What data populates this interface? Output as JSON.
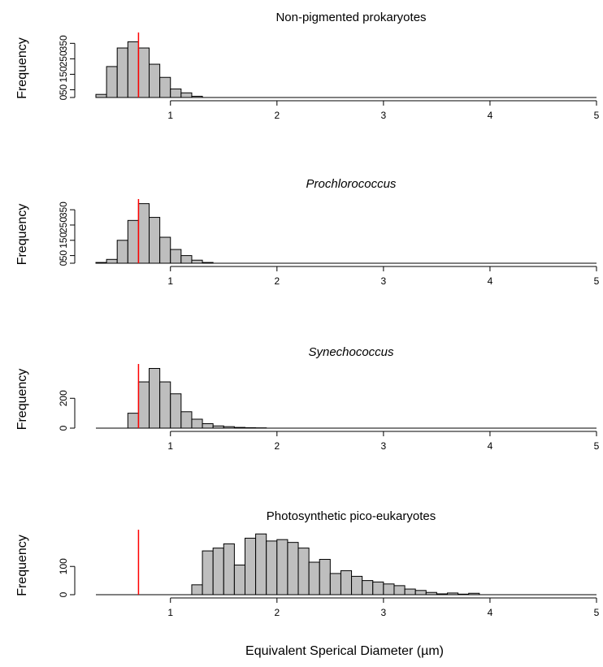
{
  "figure": {
    "xlabel": "Equivalent Sperical Diameter (µm)",
    "bar_color": "#bebebe",
    "bar_edge_color": "#000000",
    "reference_line_color": "#ff0000"
  },
  "chart_data": [
    {
      "type": "bar",
      "title": "Non-pigmented prokaryotes",
      "title_italic": false,
      "ylabel": "Frequency",
      "xlim": [
        0.3,
        5.0
      ],
      "ylim": [
        0,
        420
      ],
      "x_ticks": [
        1,
        2,
        3,
        4,
        5
      ],
      "y_ticks": [
        0,
        50,
        150,
        250,
        350
      ],
      "y_tick_labels": [
        "0",
        "50",
        "150",
        "250",
        "350"
      ],
      "bin_width": 0.1,
      "bin_starts": [
        0.3,
        0.4,
        0.5,
        0.6,
        0.7,
        0.8,
        0.9,
        1.0,
        1.1,
        1.2
      ],
      "values": [
        20,
        200,
        320,
        360,
        320,
        215,
        130,
        55,
        30,
        8
      ],
      "reference_line_x": 0.7
    },
    {
      "type": "bar",
      "title": "Prochlorococcus",
      "title_italic": true,
      "ylabel": "Frequency",
      "xlim": [
        0.3,
        5.0
      ],
      "ylim": [
        0,
        420
      ],
      "x_ticks": [
        1,
        2,
        3,
        4,
        5
      ],
      "y_ticks": [
        0,
        50,
        150,
        250,
        350
      ],
      "y_tick_labels": [
        "0",
        "50",
        "150",
        "250",
        "350"
      ],
      "bin_width": 0.1,
      "bin_starts": [
        0.3,
        0.4,
        0.5,
        0.6,
        0.7,
        0.8,
        0.9,
        1.0,
        1.1,
        1.2,
        1.3
      ],
      "values": [
        5,
        25,
        150,
        280,
        390,
        300,
        170,
        90,
        50,
        20,
        5
      ],
      "reference_line_x": 0.7
    },
    {
      "type": "bar",
      "title": "Synechococcus",
      "title_italic": true,
      "ylabel": "Frequency",
      "xlim": [
        0.3,
        5.0
      ],
      "ylim": [
        0,
        430
      ],
      "x_ticks": [
        1,
        2,
        3,
        4,
        5
      ],
      "y_ticks": [
        0,
        200
      ],
      "y_tick_labels": [
        "0",
        "200"
      ],
      "bin_width": 0.1,
      "bin_starts": [
        0.6,
        0.7,
        0.8,
        0.9,
        1.0,
        1.1,
        1.2,
        1.3,
        1.4,
        1.5,
        1.6,
        1.7,
        1.8
      ],
      "values": [
        100,
        310,
        400,
        310,
        230,
        110,
        60,
        30,
        15,
        10,
        5,
        3,
        2
      ],
      "reference_line_x": 0.7
    },
    {
      "type": "bar",
      "title": "Photosynthetic pico-eukaryotes",
      "title_italic": false,
      "ylabel": "Frequency",
      "xlim": [
        0.3,
        5.0
      ],
      "ylim": [
        0,
        230
      ],
      "x_ticks": [
        1,
        2,
        3,
        4,
        5
      ],
      "y_ticks": [
        0,
        100
      ],
      "y_tick_labels": [
        "0",
        "100"
      ],
      "bin_width": 0.1,
      "bin_starts": [
        1.2,
        1.3,
        1.4,
        1.5,
        1.6,
        1.7,
        1.8,
        1.9,
        2.0,
        2.1,
        2.2,
        2.3,
        2.4,
        2.5,
        2.6,
        2.7,
        2.8,
        2.9,
        3.0,
        3.1,
        3.2,
        3.3,
        3.4,
        3.5,
        3.6,
        3.7,
        3.8
      ],
      "values": [
        35,
        155,
        165,
        180,
        105,
        200,
        215,
        190,
        195,
        185,
        165,
        115,
        125,
        75,
        85,
        65,
        50,
        45,
        38,
        32,
        20,
        15,
        8,
        3,
        6,
        2,
        5
      ],
      "reference_line_x": 0.7
    }
  ]
}
